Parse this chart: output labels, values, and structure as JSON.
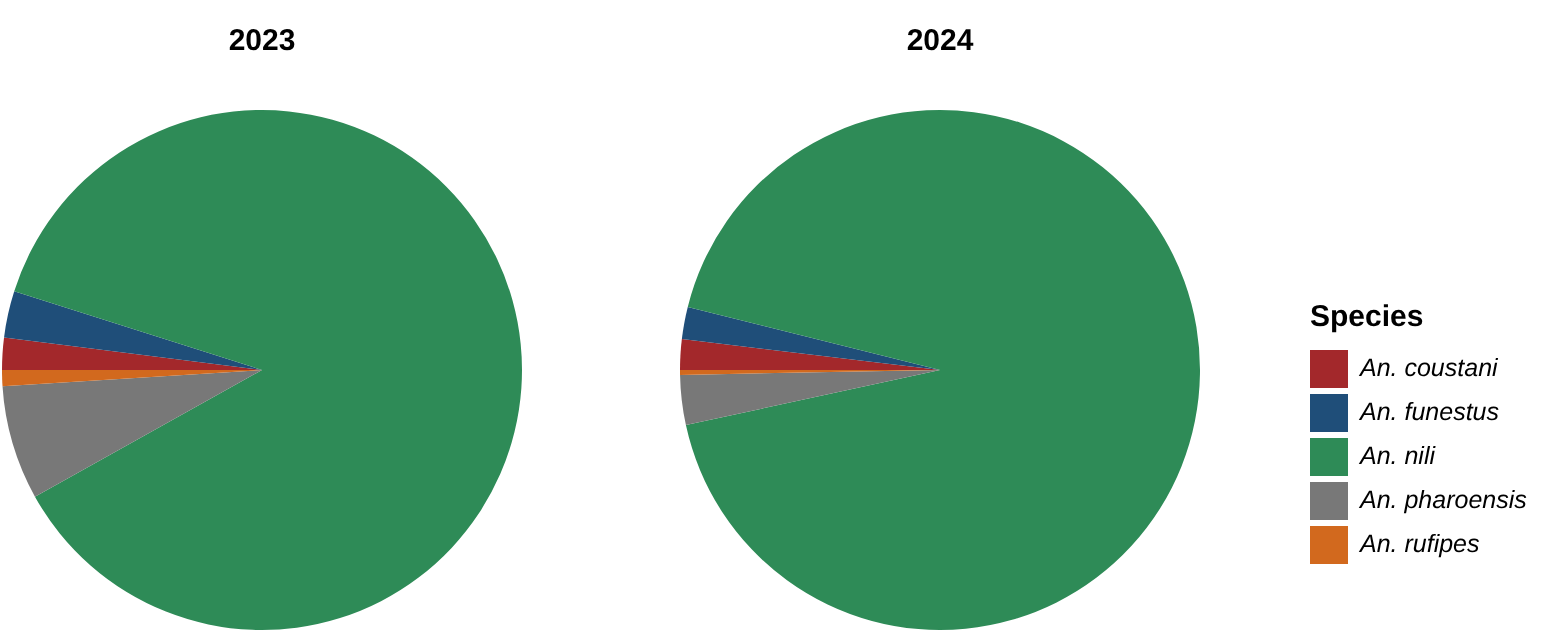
{
  "chart_data": [
    {
      "type": "pie",
      "title": "2023",
      "categories": [
        "An. coustani",
        "An. funestus",
        "An. nili",
        "An. pharoensis",
        "An. rufipes"
      ],
      "values": [
        2.0,
        2.9,
        87.0,
        7.1,
        1.0
      ],
      "colors": [
        "#a3282b",
        "#1f4e79",
        "#2e8b57",
        "#787878",
        "#d2691e"
      ],
      "legend": "right",
      "legend_title": "Species"
    },
    {
      "type": "pie",
      "title": "2024",
      "categories": [
        null,
        null,
        null,
        null,
        null
      ],
      "values": [
        1.9,
        2.0,
        92.7,
        3.1,
        0.3
      ],
      "colors": [
        "#a3282b",
        "#1f4e79",
        "#2e8b57",
        "#787878",
        "#d2691e"
      ],
      "legend": false
    }
  ]
}
